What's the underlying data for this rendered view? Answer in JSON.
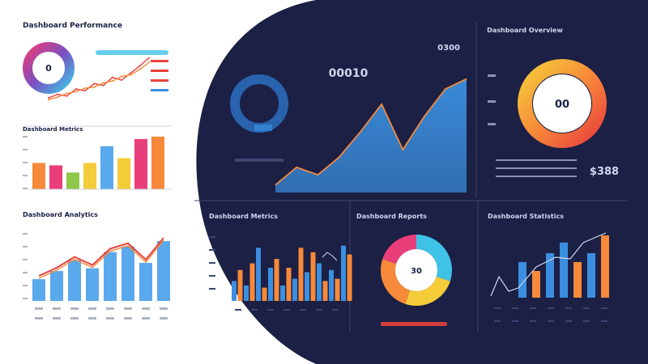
{
  "colors": {
    "navy": "#1b2044",
    "navy_panel": "#1f2550",
    "grid_line": "#3d4470",
    "blue": "#3b8fe0",
    "light_blue": "#5aa9ec",
    "orange": "#f7893a",
    "red": "#e8413c",
    "pink": "#e83e7a",
    "yellow": "#f4cb39",
    "green": "#8fc74a",
    "cyan": "#3fc2e8",
    "purple": "#7b4ec0"
  },
  "header": {
    "left_title": "Dashboard Performance",
    "top_middle_label": "0300",
    "top_middle_value": "00010",
    "top_right_title": "Dashboard Overview",
    "top_right_value": "$388",
    "donut_center_right": "00",
    "donut_center_left": "0"
  },
  "panels": {
    "left_mid_title": "Dashboard Metrics",
    "left_bottom_title": "Dashboard Analytics",
    "bottom_1_title": "Dashboard Metrics",
    "bottom_2_title": "Dashboard Reports",
    "bottom_3_title": "Dashboard Statistics",
    "bottom_2_center": "30"
  },
  "chart_data": [
    {
      "type": "line",
      "x": [
        1,
        2,
        3,
        4,
        5,
        6,
        7,
        8,
        9,
        10,
        11,
        12
      ],
      "series": [
        {
          "values": [
            10,
            14,
            12,
            20,
            18,
            26,
            24,
            33,
            30,
            38,
            46,
            55
          ]
        },
        {
          "values": [
            8,
            11,
            15,
            17,
            21,
            22,
            27,
            29,
            34,
            36,
            42,
            50
          ]
        }
      ],
      "ylim": [
        0,
        60
      ]
    },
    {
      "type": "bar",
      "categories": [
        "1",
        "2",
        "3",
        "4",
        "5",
        "6",
        "7",
        "8"
      ],
      "values": [
        22,
        20,
        14,
        22,
        36,
        26,
        42,
        44
      ],
      "ylim": [
        0,
        50
      ]
    },
    {
      "type": "area",
      "x": [
        1,
        2,
        3,
        4,
        5,
        6,
        7,
        8,
        9,
        10
      ],
      "values": [
        6,
        20,
        14,
        28,
        48,
        70,
        34,
        60,
        82,
        90
      ],
      "ylim": [
        0,
        100
      ]
    },
    {
      "type": "pie",
      "values": [
        55,
        20,
        25
      ],
      "center_label": "00"
    },
    {
      "type": "bar",
      "categories": [
        "1",
        "2",
        "3",
        "4",
        "5",
        "6",
        "7",
        "8",
        "9",
        "10",
        "11",
        "12",
        "13",
        "14",
        "15",
        "16",
        "17",
        "18",
        "19",
        "20"
      ],
      "values": [
        18,
        28,
        14,
        34,
        48,
        12,
        30,
        38,
        14,
        30,
        20,
        48,
        26,
        44,
        34,
        18,
        28,
        20,
        50,
        42
      ],
      "ylim": [
        0,
        60
      ]
    },
    {
      "type": "pie",
      "values": [
        30,
        25,
        25,
        20
      ],
      "center_label": "30"
    },
    {
      "type": "bar",
      "categories": [
        "1",
        "2",
        "3",
        "4",
        "5",
        "6",
        "7",
        "8"
      ],
      "values": [
        20,
        35,
        30,
        40,
        65,
        60,
        55,
        70
      ],
      "ylim": [
        0,
        80
      ]
    },
    {
      "type": "bar",
      "categories": [
        "1",
        "2",
        "3",
        "4",
        "5",
        "6",
        "7"
      ],
      "values": [
        40,
        30,
        50,
        62,
        40,
        50,
        70
      ],
      "ylim": [
        0,
        80
      ]
    }
  ]
}
